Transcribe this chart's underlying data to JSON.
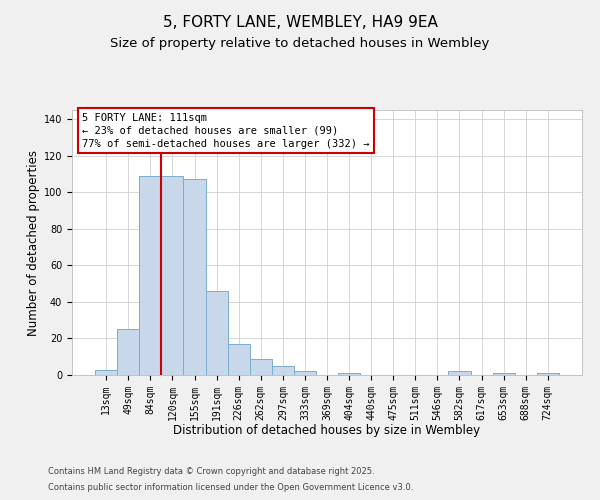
{
  "title": "5, FORTY LANE, WEMBLEY, HA9 9EA",
  "subtitle": "Size of property relative to detached houses in Wembley",
  "xlabel": "Distribution of detached houses by size in Wembley",
  "ylabel": "Number of detached properties",
  "bin_labels": [
    "13sqm",
    "49sqm",
    "84sqm",
    "120sqm",
    "155sqm",
    "191sqm",
    "226sqm",
    "262sqm",
    "297sqm",
    "333sqm",
    "369sqm",
    "404sqm",
    "440sqm",
    "475sqm",
    "511sqm",
    "546sqm",
    "582sqm",
    "617sqm",
    "653sqm",
    "688sqm",
    "724sqm"
  ],
  "bar_values": [
    3,
    25,
    109,
    109,
    107,
    46,
    17,
    9,
    5,
    2,
    0,
    1,
    0,
    0,
    0,
    0,
    2,
    0,
    1,
    0,
    1
  ],
  "bar_color": "#c8d8ea",
  "bar_edge_color": "#7aadcc",
  "vline_color": "#cc0000",
  "vline_pos": 2.5,
  "ylim": [
    0,
    145
  ],
  "yticks": [
    0,
    20,
    40,
    60,
    80,
    100,
    120,
    140
  ],
  "annotation_title": "5 FORTY LANE: 111sqm",
  "annotation_line1": "← 23% of detached houses are smaller (99)",
  "annotation_line2": "77% of semi-detached houses are larger (332) →",
  "annotation_box_color": "#cc0000",
  "footnote1": "Contains HM Land Registry data © Crown copyright and database right 2025.",
  "footnote2": "Contains public sector information licensed under the Open Government Licence v3.0.",
  "background_color": "#f0f0f0",
  "plot_bg_color": "#ffffff",
  "grid_color": "#d0d0d0",
  "title_fontsize": 11,
  "subtitle_fontsize": 9.5,
  "axis_label_fontsize": 8.5,
  "tick_fontsize": 7,
  "annotation_fontsize": 7.5,
  "footnote_fontsize": 6
}
